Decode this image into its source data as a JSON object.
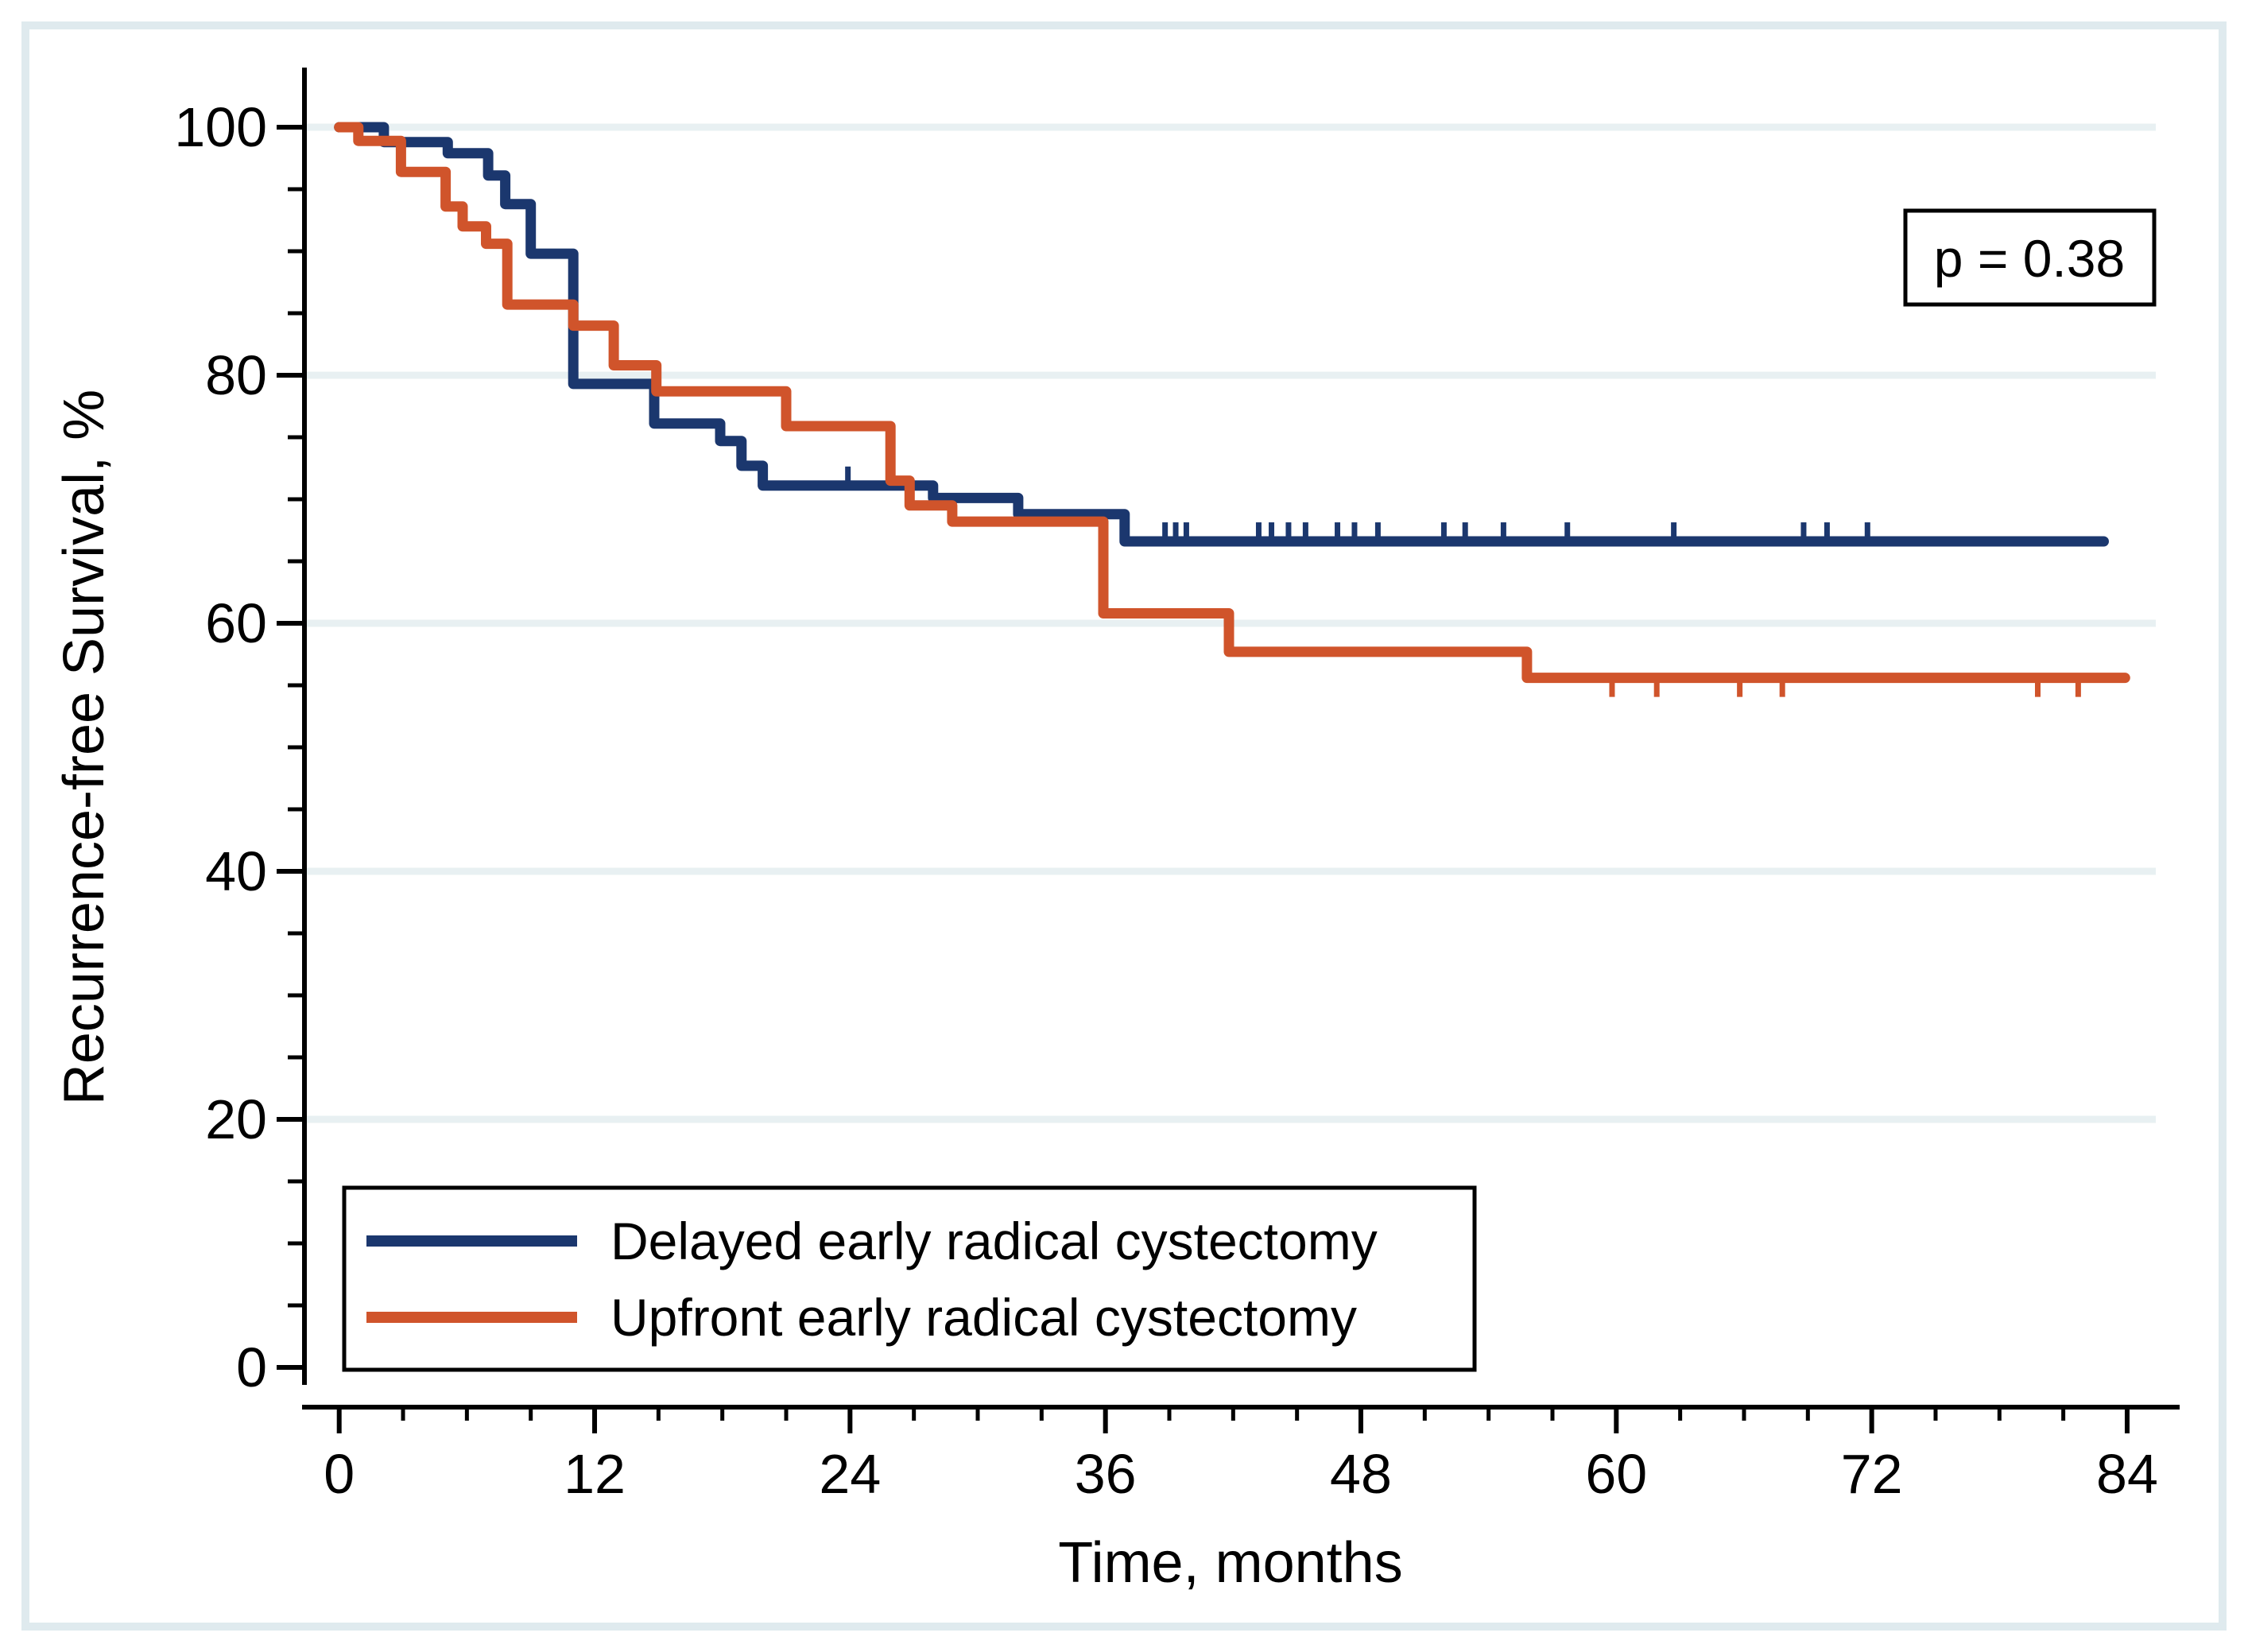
{
  "figure": {
    "frame_color": "#dfeaee",
    "background": "#ffffff",
    "annotation_box": {
      "label": "p = 0.38"
    }
  },
  "chart_data": {
    "type": "line",
    "subtype": "kaplan-meier-step",
    "title": "",
    "xlabel": "Time, months",
    "ylabel": "Recurrence-free Survival, %",
    "xlim": [
      0,
      84
    ],
    "ylim": [
      0,
      100
    ],
    "x_ticks": [
      0,
      12,
      24,
      36,
      48,
      60,
      72,
      84
    ],
    "x_minor_step": 3,
    "y_ticks": [
      0,
      20,
      40,
      60,
      80,
      100
    ],
    "y_minor_step": 5,
    "grid": "horizontal-major",
    "gridline_color": "#e8f0f2",
    "legend_position": "inside-bottom-left",
    "annotation": "p = 0.38",
    "series": [
      {
        "name": "Delayed early radical cystectomy",
        "color": "#1b376e",
        "censor_tick_direction": "up",
        "start": [
          0,
          100
        ],
        "steps": [
          [
            2.1,
            98.8
          ],
          [
            5.1,
            97.9
          ],
          [
            7.0,
            96.1
          ],
          [
            7.8,
            93.8
          ],
          [
            9.0,
            89.8
          ],
          [
            11.0,
            79.3
          ],
          [
            14.8,
            76.1
          ],
          [
            17.9,
            74.7
          ],
          [
            18.9,
            72.7
          ],
          [
            19.9,
            71.1
          ],
          [
            27.9,
            70.1
          ],
          [
            31.9,
            68.8
          ],
          [
            36.9,
            66.6
          ]
        ],
        "end_t": 82.9,
        "censor_marks": [
          [
            23.9,
            71.1
          ],
          [
            38.8,
            66.6
          ],
          [
            39.3,
            66.6
          ],
          [
            39.8,
            66.6
          ],
          [
            43.2,
            66.6
          ],
          [
            43.8,
            66.6
          ],
          [
            44.6,
            66.6
          ],
          [
            45.4,
            66.6
          ],
          [
            46.9,
            66.6
          ],
          [
            47.7,
            66.6
          ],
          [
            48.8,
            66.6
          ],
          [
            51.9,
            66.6
          ],
          [
            52.9,
            66.6
          ],
          [
            54.7,
            66.6
          ],
          [
            57.7,
            66.6
          ],
          [
            62.7,
            66.6
          ],
          [
            68.8,
            66.6
          ],
          [
            69.9,
            66.6
          ],
          [
            71.8,
            66.6
          ]
        ]
      },
      {
        "name": "Upfront early radical cystectomy",
        "color": "#d0542b",
        "censor_tick_direction": "down",
        "start": [
          0,
          100
        ],
        "steps": [
          [
            0.9,
            98.9
          ],
          [
            2.9,
            96.4
          ],
          [
            5.0,
            93.6
          ],
          [
            5.8,
            92.0
          ],
          [
            6.9,
            90.6
          ],
          [
            7.9,
            85.7
          ],
          [
            11.0,
            84.0
          ],
          [
            12.9,
            80.8
          ],
          [
            14.9,
            78.7
          ],
          [
            21.0,
            75.9
          ],
          [
            25.9,
            71.5
          ],
          [
            26.8,
            69.5
          ],
          [
            28.8,
            68.2
          ],
          [
            35.9,
            60.8
          ],
          [
            41.8,
            57.7
          ],
          [
            55.8,
            55.6
          ]
        ],
        "end_t": 83.9,
        "censor_marks": [
          [
            59.8,
            55.6
          ],
          [
            61.9,
            55.6
          ],
          [
            65.8,
            55.6
          ],
          [
            67.8,
            55.6
          ],
          [
            79.8,
            55.6
          ],
          [
            81.7,
            55.6
          ]
        ]
      }
    ]
  }
}
